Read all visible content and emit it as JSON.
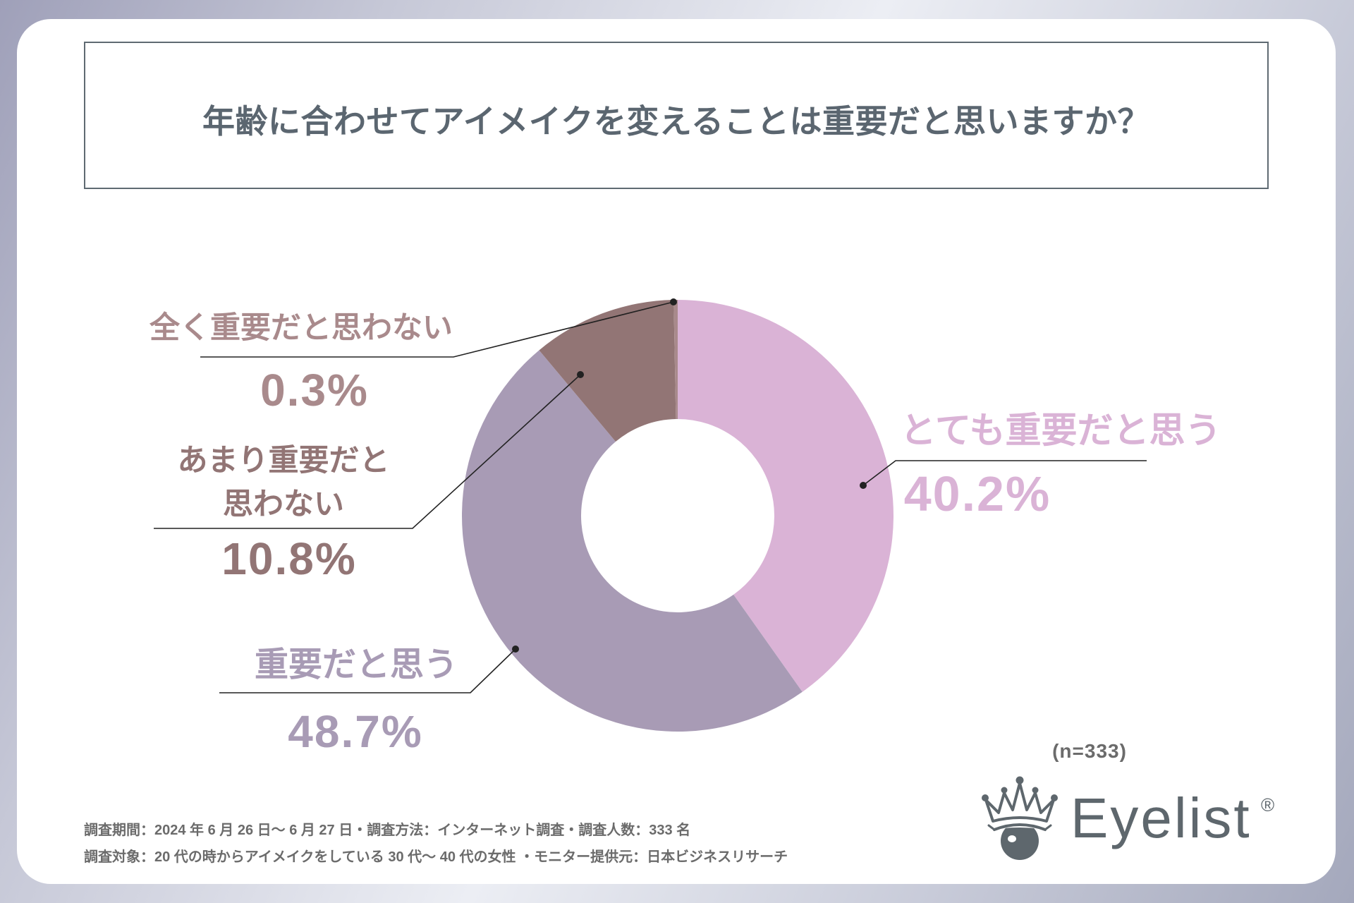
{
  "chart_data": {
    "type": "pie",
    "donut": true,
    "title": "年齢に合わせてアイメイクを変えることは重要だと思いますか？",
    "categories": [
      "とても重要だと思う",
      "重要だと思う",
      "あまり重要だと思わない",
      "全く重要だと思わない"
    ],
    "values": [
      40.2,
      48.7,
      10.8,
      0.3
    ],
    "unit": "%",
    "colors": [
      "#dab3d6",
      "#a89bb5",
      "#927575",
      "#a98a8c"
    ],
    "sample_note": "(n=333)"
  },
  "survey": {
    "period_line": "調査期間：2024 年 6 月 26 日～ 6 月 27 日・調査方法：インターネット調査・調査人数：333 名",
    "target_line": "調査対象：20 代の時からアイメイクをしている 30 代～ 40 代の女性 ・モニター提供元：日本ビジネスリサーチ"
  },
  "brand": {
    "name": "Eyelist",
    "registered_mark": "®",
    "logo_icon": "crown-eye-icon"
  },
  "colors": {
    "title_text": "#5b6670",
    "title_border": "#5f6a72",
    "leader_line": "#222222",
    "footer_text": "#6b6b6b",
    "brand": "#5e676d"
  }
}
